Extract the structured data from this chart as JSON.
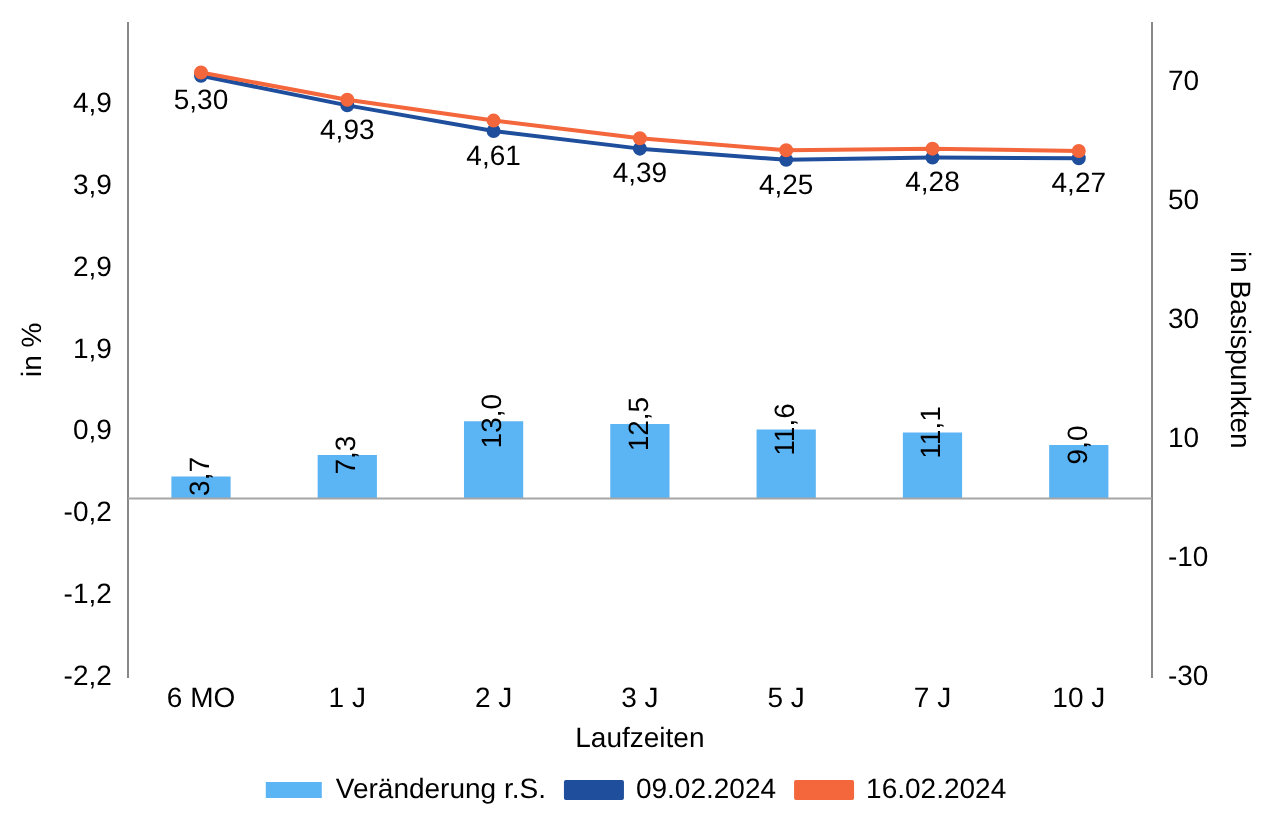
{
  "chart_data": {
    "type": "bar",
    "categories": [
      "6 MO",
      "1 J",
      "2 J",
      "3 J",
      "5 J",
      "7 J",
      "10 J"
    ],
    "xlabel": "Laufzeiten",
    "ylabel": "in %",
    "y2label": "in Basispunkten",
    "series": [
      {
        "name": "Veränderung r.S.",
        "axis": "y2",
        "color": "#5bb4f4",
        "values": [
          3.7,
          7.3,
          13.0,
          12.5,
          11.6,
          11.1,
          9.0
        ],
        "value_labels": [
          "3,7",
          "7,3",
          "13,0",
          "12,5",
          "11,6",
          "11,1",
          "9,0"
        ]
      },
      {
        "name": "09.02.2024",
        "type": "line",
        "color": "#1f4e9c",
        "values": [
          5.3,
          4.93,
          4.61,
          4.39,
          4.25,
          4.28,
          4.27
        ],
        "value_labels": [
          "5,30",
          "4,93",
          "4,61",
          "4,39",
          "4,25",
          "4,28",
          "4,27"
        ]
      },
      {
        "name": "16.02.2024",
        "type": "line",
        "color": "#f4663b",
        "values": [
          5.34,
          5.0,
          4.74,
          4.52,
          4.37,
          4.39,
          4.36
        ]
      }
    ],
    "ylim": [
      -2.2,
      5.96
    ],
    "yticks": [
      {
        "value": -2.2,
        "label": "-2,2"
      },
      {
        "value": -1.18,
        "label": "-1,2"
      },
      {
        "value": -0.16,
        "label": "-0,2"
      },
      {
        "value": 0.86,
        "label": "0,9"
      },
      {
        "value": 1.88,
        "label": "1,9"
      },
      {
        "value": 2.9,
        "label": "2,9"
      },
      {
        "value": 3.92,
        "label": "3,9"
      },
      {
        "value": 4.94,
        "label": "4,9"
      }
    ],
    "y2lim": [
      -30,
      80
    ],
    "y2ticks": [
      -30,
      -10,
      10,
      30,
      50,
      70
    ],
    "ref_lines": [
      {
        "axis": "y2",
        "value": 0,
        "color": "#a6a6a6"
      }
    ],
    "grid": false,
    "legend": "bottom",
    "marker": "circle",
    "line_style": "solid"
  }
}
